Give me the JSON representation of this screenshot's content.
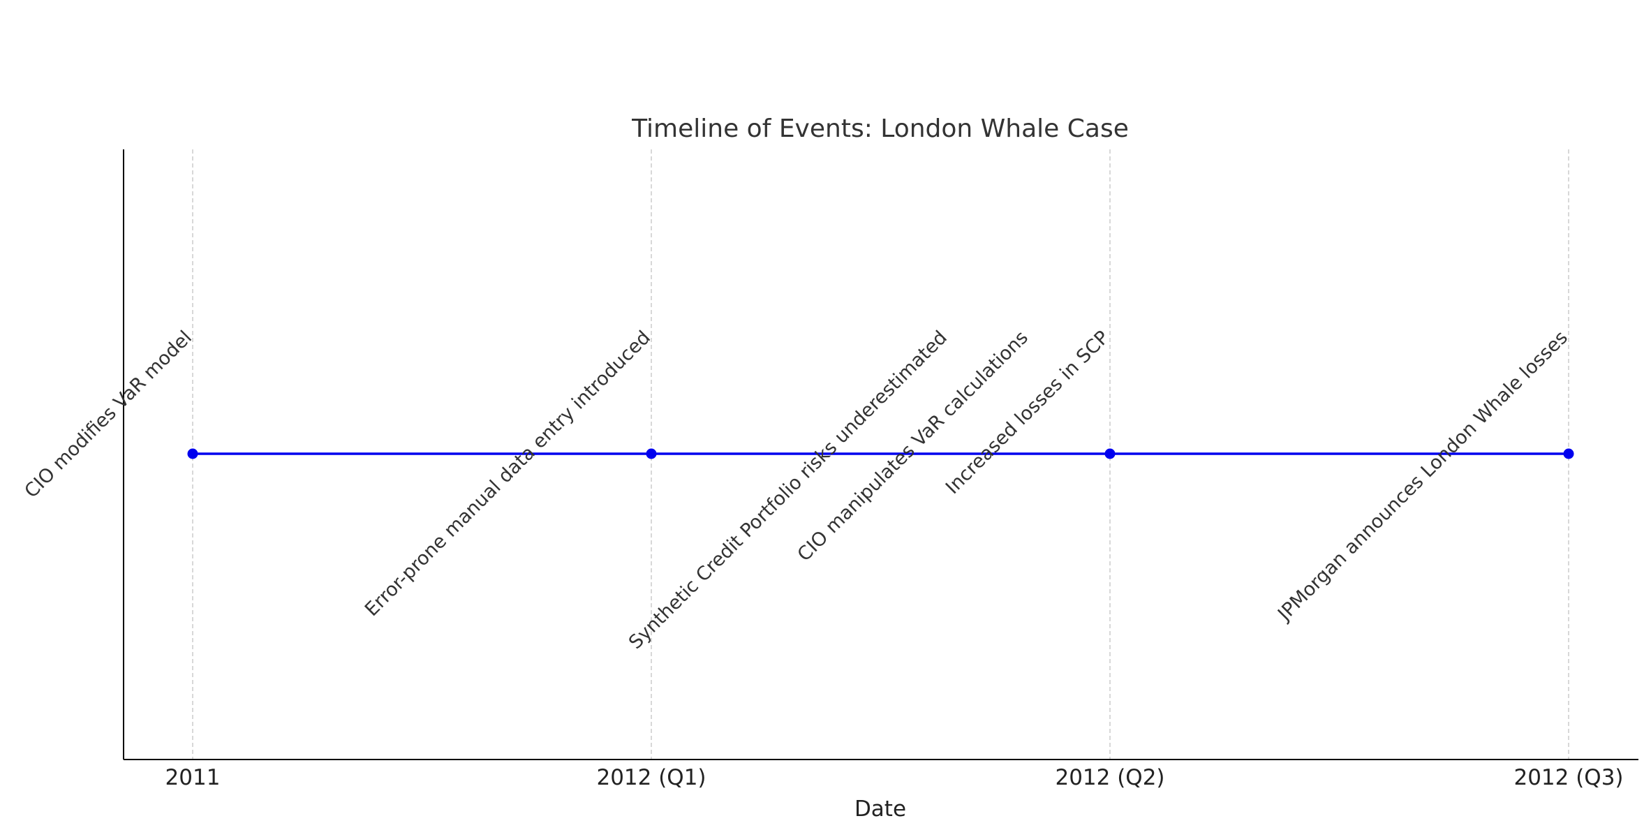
{
  "chart_data": {
    "type": "line",
    "title": "Timeline of Events: London Whale Case",
    "xlabel": "Date",
    "ylabel": "",
    "categories": [
      "2011",
      "2012 (Q1)",
      "2012 (Q2)",
      "2012 (Q3)"
    ],
    "series": [
      {
        "values": [
          0,
          0,
          0,
          0
        ]
      }
    ],
    "events": [
      {
        "category_index": 0,
        "label": "CIO modifies VaR model"
      },
      {
        "category_index": 1,
        "label": "Error-prone manual data entry introduced"
      },
      {
        "category_index": 2,
        "label": "Synthetic Credit Portfolio risks underestimated"
      },
      {
        "category_index": 2,
        "label": "CIO manipulates VaR calculations"
      },
      {
        "category_index": 2,
        "label": "Increased losses in SCP"
      },
      {
        "category_index": 3,
        "label": "JPMorgan announces London Whale losses"
      }
    ],
    "grid": "vertical dashed",
    "colors": {
      "line": "#0000ee",
      "marker": "#0000ee",
      "grid": "#cccccc",
      "axis": "#000000",
      "text": "#333333"
    }
  }
}
